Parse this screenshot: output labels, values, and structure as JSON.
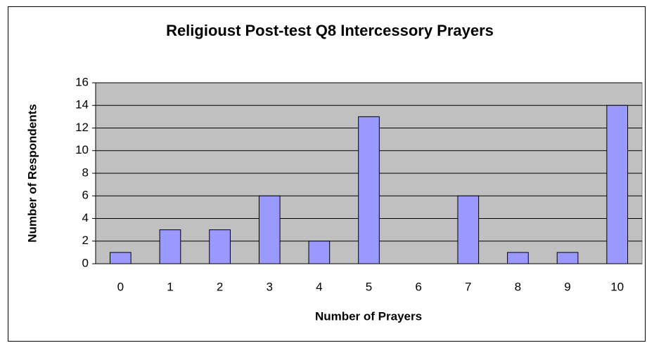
{
  "chart_data": {
    "type": "bar",
    "title": "Religioust Post-test Q8 Intercessory Prayers",
    "x_label": "Number of Prayers",
    "y_label": "Number of Respondents",
    "categories": [
      "0",
      "1",
      "2",
      "3",
      "4",
      "5",
      "6",
      "7",
      "8",
      "9",
      "10"
    ],
    "values": [
      1,
      3,
      3,
      6,
      2,
      13,
      0,
      6,
      1,
      1,
      14
    ],
    "color": "#9999ff",
    "ylim": [
      0,
      16
    ],
    "yticks": [
      0,
      2,
      4,
      6,
      8,
      10,
      12,
      14,
      16
    ],
    "grid": true
  }
}
